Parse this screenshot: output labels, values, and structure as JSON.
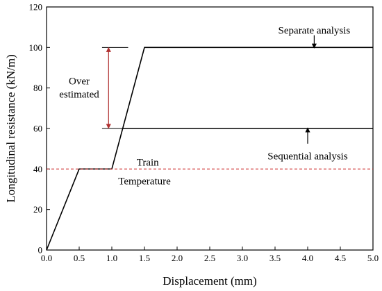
{
  "chart_data": {
    "type": "line",
    "xlabel": "Displacement (mm)",
    "ylabel": "Longitudinal resistance (kN/m)",
    "xlim": [
      0,
      5
    ],
    "ylim": [
      0,
      120
    ],
    "xticks": [
      0,
      0.5,
      1,
      1.5,
      2,
      2.5,
      3,
      3.5,
      4,
      4.5,
      5
    ],
    "xtick_labels": [
      "0.0",
      "0.5",
      "1.0",
      "1.5",
      "2.0",
      "2.5",
      "3.0",
      "3.5",
      "4.0",
      "4.5",
      "5.0"
    ],
    "yticks": [
      0,
      20,
      40,
      60,
      80,
      100,
      120
    ],
    "ytick_labels": [
      "0",
      "20",
      "40",
      "60",
      "80",
      "100",
      "120"
    ],
    "grid": false,
    "series": [
      {
        "key": "separate",
        "color": "#000000",
        "style": "solid",
        "x": [
          0,
          0.5,
          1.0,
          1.5,
          5.0
        ],
        "y": [
          0,
          40,
          40,
          100,
          100
        ]
      },
      {
        "key": "sequential",
        "color": "#000000",
        "style": "solid",
        "x": [
          1.17,
          5.0
        ],
        "y": [
          60,
          60
        ]
      },
      {
        "key": "train-temperature",
        "color": "#cc2222",
        "style": "dashed",
        "x": [
          0,
          5.0
        ],
        "y": [
          40,
          40
        ]
      }
    ],
    "annotations": {
      "separate_label": "Separate analysis",
      "sequential_label": "Sequential analysis",
      "over_label_line1": "Over",
      "over_label_line2": "estimated",
      "train_label": "Train",
      "temperature_label": "Temperature",
      "train_color": "#a0302a",
      "temperature_color": "#cc22cc",
      "over_arrow_color": "#b03030",
      "over_arrow_x": 0.95,
      "over_marker_x": [
        0.85,
        1.25
      ]
    }
  }
}
